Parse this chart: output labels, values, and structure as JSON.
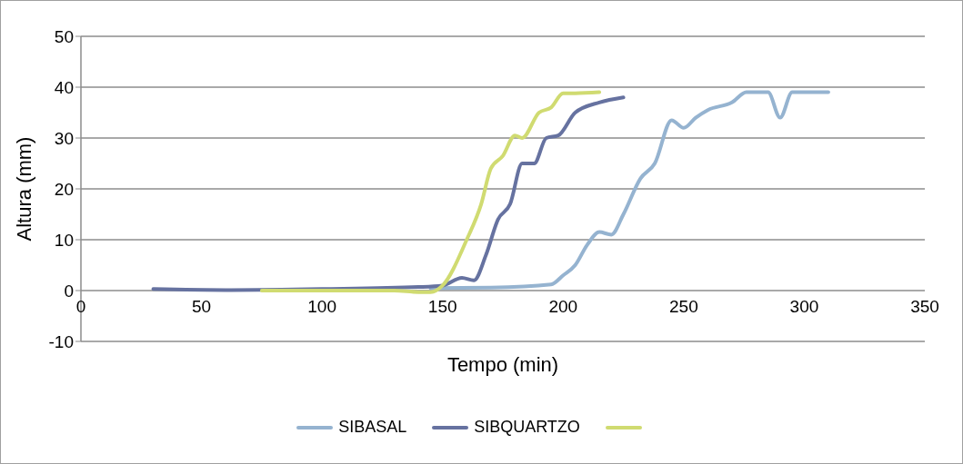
{
  "chart_data": {
    "type": "line",
    "xlabel": "Tempo (min)",
    "ylabel": "Altura (mm)",
    "xlim": [
      0,
      350
    ],
    "xticks": [
      0,
      50,
      100,
      150,
      200,
      250,
      300,
      350
    ],
    "ylim": [
      -10,
      50
    ],
    "yticks": [
      -10,
      0,
      10,
      20,
      30,
      40,
      50
    ],
    "grid": "y",
    "legend": "bottom",
    "marker": "none",
    "line_style": "solid",
    "series": [
      {
        "name": "SIBASAL",
        "color": "#95b3d0",
        "x": [
          145,
          170,
          195,
          200,
          205,
          210,
          215,
          220,
          225,
          232,
          238,
          245,
          250,
          255,
          260,
          270,
          276,
          285,
          290,
          295,
          300,
          310
        ],
        "values": [
          0.5,
          0.6,
          1.2,
          3,
          5,
          9,
          11.5,
          11,
          15,
          22,
          25,
          33.5,
          32,
          34,
          35.5,
          37,
          39,
          39,
          34,
          39,
          39,
          39
        ]
      },
      {
        "name": "SIBQUARTZO",
        "color": "#6672a0",
        "x": [
          30,
          60,
          100,
          140,
          150,
          158,
          163,
          168,
          173,
          178,
          183,
          188,
          193,
          198,
          205,
          215,
          225
        ],
        "values": [
          0.3,
          0.1,
          0.3,
          0.7,
          1,
          2.5,
          2,
          7,
          14,
          17,
          25,
          25,
          30,
          30.5,
          35,
          37,
          38
        ]
      },
      {
        "color": "#d0db71",
        "x": [
          75,
          130,
          140,
          145,
          150,
          160,
          166,
          170,
          175,
          180,
          183,
          190,
          195,
          200,
          205,
          215
        ],
        "values": [
          0,
          0,
          -0.3,
          -0.3,
          1,
          10,
          17,
          24,
          26.5,
          30.5,
          30,
          35,
          36,
          38.8,
          38.8,
          39
        ]
      }
    ]
  }
}
